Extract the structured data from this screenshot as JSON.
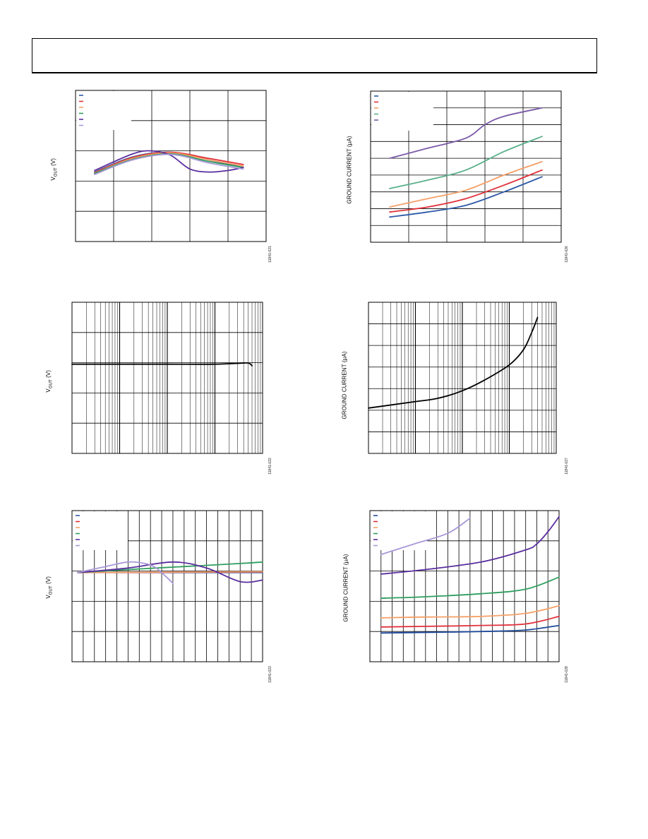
{
  "page": {
    "header": ""
  },
  "charts": [
    {
      "id": "c1",
      "ylabel": "V_OUT (V)",
      "ylabel_main": "V",
      "ylabel_sub": "OUT",
      "ylabel_rest": " (V)",
      "figure_id": "11841-021",
      "legend_colors": [
        "#2e5aa8",
        "#e0303a",
        "#f5a068",
        "#2e9e5e",
        "#5a2e9e",
        "#a898d8"
      ],
      "vlines": 5,
      "hlines": 5,
      "log": false
    },
    {
      "id": "c2",
      "ylabel": "GROUND CURRENT (µA)",
      "figure_id": "11841-026",
      "legend_colors": [
        "#2e5aa8",
        "#e0303a",
        "#f5a068",
        "#5ab08a",
        "#7a5aa8"
      ],
      "vlines": 5,
      "hlines": 9,
      "log": false
    },
    {
      "id": "c3",
      "ylabel": "V_OUT (V)",
      "ylabel_main": "V",
      "ylabel_sub": "OUT",
      "ylabel_rest": " (V)",
      "figure_id": "11841-022",
      "legend_colors": [],
      "hlines": 5,
      "log": true,
      "decades": 4
    },
    {
      "id": "c4",
      "ylabel": "GROUND CURRENT (µA)",
      "figure_id": "11841-027",
      "legend_colors": [],
      "hlines": 7,
      "log": true,
      "decades": 4
    },
    {
      "id": "c5",
      "ylabel": "V_OUT (V)",
      "ylabel_main": "V",
      "ylabel_sub": "OUT",
      "ylabel_rest": " (V)",
      "figure_id": "11841-023",
      "legend_colors": [
        "#2e5aa8",
        "#e0303a",
        "#f5a068",
        "#2e9e5e",
        "#5a2e9e",
        "#a898d8"
      ],
      "vlines": 17,
      "hlines": 5,
      "log": false
    },
    {
      "id": "c6",
      "ylabel": "GROUND CURRENT (µA)",
      "figure_id": "11841-028",
      "legend_colors": [
        "#1f4a9a",
        "#e0303a",
        "#f5a068",
        "#2e9e5e",
        "#5a2e9e",
        "#a898d8"
      ],
      "vlines": 17,
      "hlines": 5,
      "log": false
    }
  ],
  "chart_data": [
    {
      "type": "line",
      "title": "",
      "xlim": [
        0,
        5
      ],
      "ylim": [
        0,
        5
      ],
      "series": [
        {
          "color": "#2e5aa8",
          "x": [
            0.5,
            1.5,
            2.5,
            3.5,
            4.4
          ],
          "y": [
            2.3,
            2.8,
            2.95,
            2.7,
            2.45
          ]
        },
        {
          "color": "#e0303a",
          "x": [
            0.5,
            1.5,
            2.5,
            3.5,
            4.4
          ],
          "y": [
            2.28,
            2.78,
            2.95,
            2.75,
            2.55
          ]
        },
        {
          "color": "#f5a068",
          "x": [
            0.5,
            1.5,
            2.5,
            3.5,
            4.4
          ],
          "y": [
            2.26,
            2.75,
            2.93,
            2.7,
            2.5
          ]
        },
        {
          "color": "#2e9e5e",
          "x": [
            0.5,
            1.5,
            2.5,
            3.5,
            4.4
          ],
          "y": [
            2.25,
            2.72,
            2.9,
            2.65,
            2.45
          ]
        },
        {
          "color": "#5a2e9e",
          "x": [
            0.5,
            1.5,
            2.0,
            2.5,
            3.0,
            3.5,
            4.0,
            4.4
          ],
          "y": [
            2.35,
            2.9,
            3.0,
            2.85,
            2.4,
            2.3,
            2.35,
            2.45
          ]
        },
        {
          "color": "#a898d8",
          "x": [
            0.5,
            1.5,
            2.5,
            3.5,
            4.4
          ],
          "y": [
            2.22,
            2.7,
            2.88,
            2.6,
            2.4
          ]
        }
      ]
    },
    {
      "type": "line",
      "title": "",
      "xlim": [
        0,
        5
      ],
      "ylim": [
        0,
        9
      ],
      "series": [
        {
          "color": "#2e5aa8",
          "x": [
            0.5,
            1.5,
            2.5,
            3.5,
            4.5
          ],
          "y": [
            1.5,
            1.8,
            2.2,
            3.0,
            3.9
          ]
        },
        {
          "color": "#e0303a",
          "x": [
            0.5,
            1.5,
            2.5,
            3.5,
            4.5
          ],
          "y": [
            1.8,
            2.1,
            2.6,
            3.4,
            4.3
          ]
        },
        {
          "color": "#f5a068",
          "x": [
            0.5,
            1.5,
            2.5,
            3.5,
            4.5
          ],
          "y": [
            2.1,
            2.6,
            3.1,
            4.0,
            4.8
          ]
        },
        {
          "color": "#5ab08a",
          "x": [
            0.5,
            1.5,
            2.5,
            3.5,
            4.5
          ],
          "y": [
            3.2,
            3.7,
            4.3,
            5.4,
            6.3
          ]
        },
        {
          "color": "#7a5aa8",
          "x": [
            0.5,
            1.5,
            2.5,
            3.0,
            3.5,
            4.5
          ],
          "y": [
            5.0,
            5.6,
            6.2,
            7.0,
            7.5,
            8.0
          ]
        }
      ]
    },
    {
      "type": "line",
      "title": "",
      "xscale": "log",
      "xlim": [
        1,
        10000
      ],
      "ylim": [
        0,
        5
      ],
      "series": [
        {
          "color": "#000000",
          "x": [
            1,
            10,
            100,
            1000,
            3000,
            5000,
            6000
          ],
          "y": [
            2.95,
            2.95,
            2.95,
            2.95,
            2.98,
            2.99,
            2.9
          ]
        }
      ]
    },
    {
      "type": "line",
      "title": "",
      "xscale": "log",
      "xlim": [
        1,
        10000
      ],
      "ylim": [
        0,
        7
      ],
      "series": [
        {
          "color": "#000000",
          "x": [
            1,
            10,
            30,
            100,
            300,
            1000,
            2000,
            3000,
            4000
          ],
          "y": [
            2.1,
            2.4,
            2.55,
            2.9,
            3.4,
            4.1,
            4.8,
            5.6,
            6.3
          ]
        }
      ]
    },
    {
      "type": "line",
      "title": "",
      "xlim": [
        0,
        17
      ],
      "ylim": [
        0,
        5
      ],
      "series": [
        {
          "color": "#2e5aa8",
          "x": [
            0.5,
            17
          ],
          "y": [
            2.95,
            2.95
          ]
        },
        {
          "color": "#e0303a",
          "x": [
            0.5,
            17
          ],
          "y": [
            2.95,
            2.97
          ]
        },
        {
          "color": "#f5a068",
          "x": [
            0.5,
            17
          ],
          "y": [
            2.95,
            2.98
          ]
        },
        {
          "color": "#2e9e5e",
          "x": [
            0.5,
            5,
            10,
            15,
            17
          ],
          "y": [
            2.95,
            3.05,
            3.15,
            3.25,
            3.3
          ]
        },
        {
          "color": "#5a2e9e",
          "x": [
            0.5,
            5,
            9,
            12,
            15,
            17
          ],
          "y": [
            2.95,
            3.1,
            3.3,
            3.1,
            2.65,
            2.7
          ]
        },
        {
          "color": "#a898d8",
          "x": [
            0.5,
            3,
            5,
            6.5,
            7.5,
            9
          ],
          "y": [
            2.95,
            3.15,
            3.3,
            3.25,
            3.1,
            2.6
          ]
        }
      ]
    },
    {
      "type": "line",
      "title": "",
      "xlim": [
        0,
        17
      ],
      "ylim": [
        0,
        5
      ],
      "series": [
        {
          "color": "#1f4a9a",
          "x": [
            1,
            5,
            10,
            14,
            17
          ],
          "y": [
            0.95,
            0.97,
            1.0,
            1.05,
            1.2
          ]
        },
        {
          "color": "#e0303a",
          "x": [
            1,
            5,
            10,
            14,
            17
          ],
          "y": [
            1.15,
            1.17,
            1.2,
            1.25,
            1.5
          ]
        },
        {
          "color": "#f5a068",
          "x": [
            1,
            5,
            10,
            14,
            17
          ],
          "y": [
            1.45,
            1.48,
            1.5,
            1.6,
            1.85
          ]
        },
        {
          "color": "#2e9e5e",
          "x": [
            1,
            5,
            10,
            14,
            17
          ],
          "y": [
            2.1,
            2.15,
            2.25,
            2.4,
            2.8
          ]
        },
        {
          "color": "#5a2e9e",
          "x": [
            1,
            5,
            10,
            14,
            15,
            16,
            17
          ],
          "y": [
            2.9,
            3.05,
            3.3,
            3.7,
            3.9,
            4.3,
            4.8
          ]
        },
        {
          "color": "#a898d8",
          "x": [
            1,
            4,
            7,
            9
          ],
          "y": [
            3.55,
            3.9,
            4.25,
            4.75
          ]
        }
      ]
    }
  ]
}
